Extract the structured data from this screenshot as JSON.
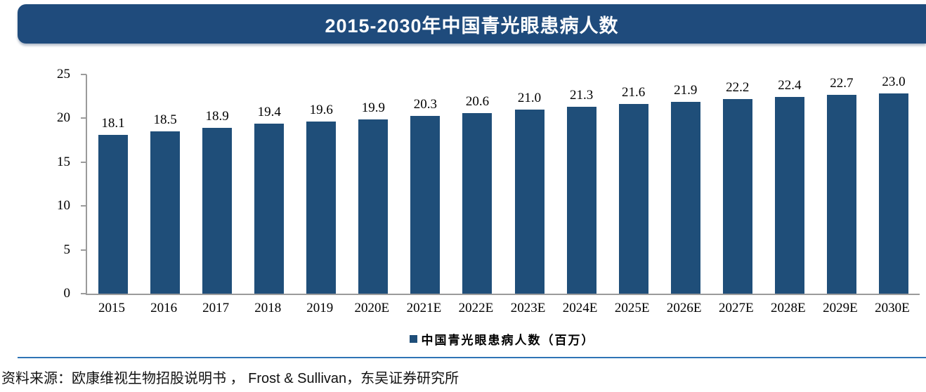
{
  "header": {
    "title": "2015-2030年中国青光眼患病人数"
  },
  "chart_data": {
    "type": "bar",
    "title": "2015-2030年中国青光眼患病人数",
    "categories": [
      "2015",
      "2016",
      "2017",
      "2018",
      "2019",
      "2020E",
      "2021E",
      "2022E",
      "2023E",
      "2024E",
      "2025E",
      "2026E",
      "2027E",
      "2028E",
      "2029E",
      "2030E"
    ],
    "values": [
      18.1,
      18.5,
      18.9,
      19.4,
      19.6,
      19.9,
      20.3,
      20.6,
      21.0,
      21.3,
      21.6,
      21.9,
      22.2,
      22.4,
      22.7,
      23.0
    ],
    "series_name": "中国青光眼患病人数（百万）",
    "xlabel": "",
    "ylabel": "",
    "ylim": [
      0,
      25
    ],
    "yticks": [
      0,
      5,
      10,
      15,
      20,
      25
    ],
    "grid": false,
    "data_labels": true,
    "legend_position": "bottom",
    "bar_color": "#1F4E79"
  },
  "legend": {
    "label": "中国青光眼患病人数（百万）",
    "marker_color": "#1F4E79"
  },
  "footer": {
    "source": "资料来源：欧康维视生物招股说明书 ， Frost & Sullivan，东吴证券研究所"
  },
  "colors": {
    "banner_bg": "#1F4B7C",
    "bar": "#1F4E79",
    "separator": "#2E74B5",
    "axis": "#9B9B9B"
  }
}
